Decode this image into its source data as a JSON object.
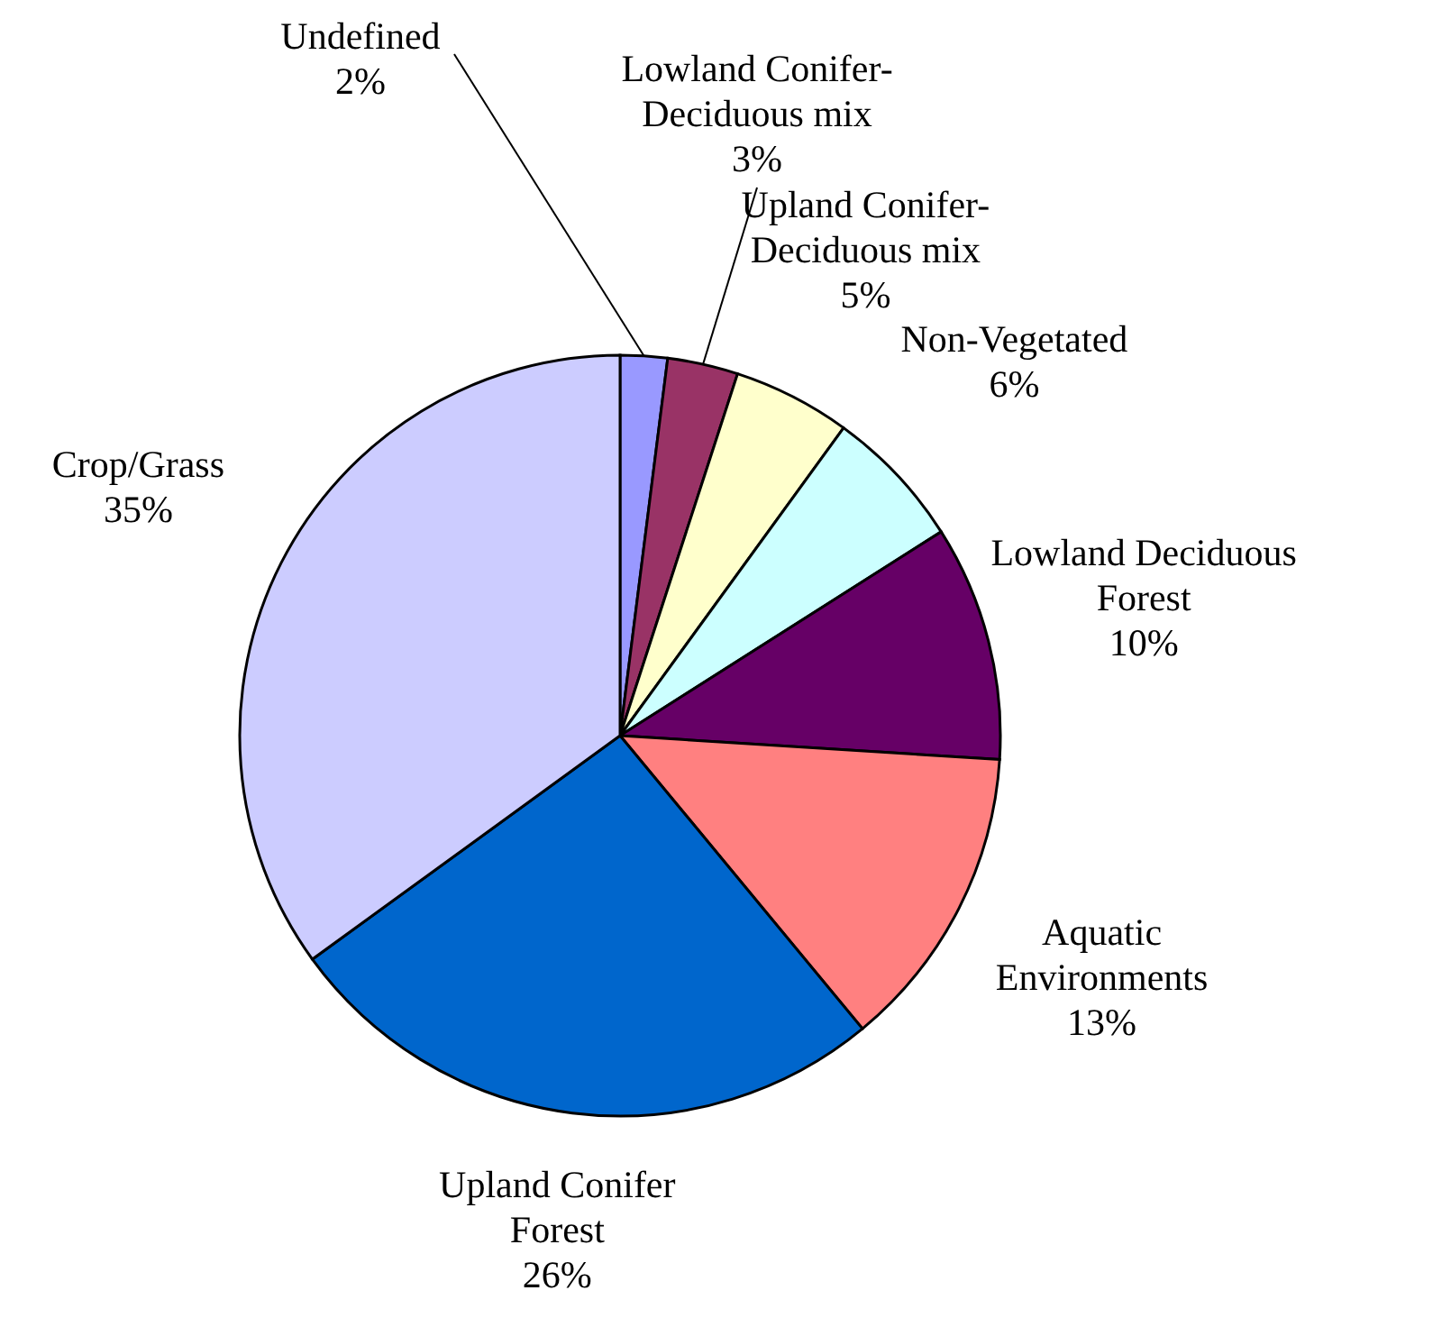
{
  "chart_data": {
    "type": "pie",
    "categories": [
      "Undefined",
      "Lowland Conifer-Deciduous mix",
      "Upland Conifer-Deciduous mix",
      "Non-Vegetated",
      "Lowland Deciduous Forest",
      "Aquatic Environments",
      "Upland Conifer Forest",
      "Crop/Grass"
    ],
    "values": [
      2,
      3,
      5,
      6,
      10,
      13,
      26,
      35
    ],
    "colors": [
      "#9999ff",
      "#993366",
      "#ffffcc",
      "#ccffff",
      "#660066",
      "#ff8080",
      "#0066cc",
      "#ccccff"
    ],
    "value_labels": [
      "2%",
      "3%",
      "5%",
      "6%",
      "10%",
      "13%",
      "26%",
      "35%"
    ]
  }
}
